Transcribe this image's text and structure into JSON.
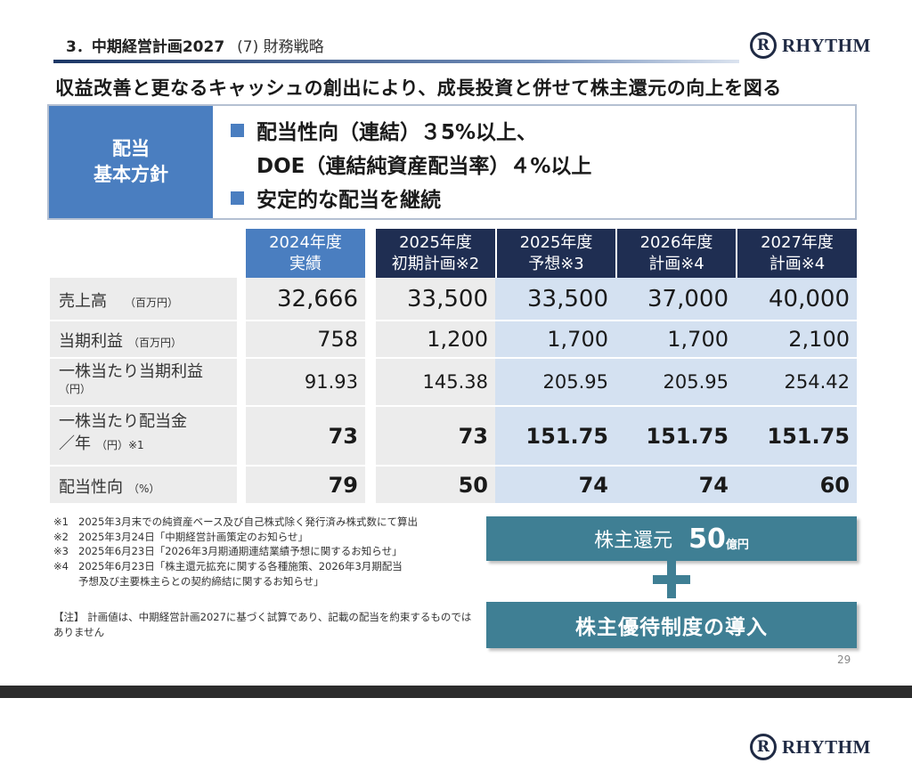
{
  "header": {
    "title": "3．中期経営計画2027",
    "subtitle": "(7) 財務戦略"
  },
  "logo": {
    "mark": "R",
    "word": "RHYTHM"
  },
  "headline": "収益改善と更なるキャッシュの創出により、成長投資と併せて株主還元の向上を図る",
  "policy": {
    "label_line1": "配当",
    "label_line2": "基本方針",
    "line1": "配当性向（連結）３5%以上、",
    "line2": "DOE（連結純資産配当率）４%以上",
    "line3": "安定的な配当を継続"
  },
  "table": {
    "columns": [
      {
        "line1": "2024年度",
        "line2": "実績"
      },
      {
        "line1": "2025年度",
        "line2": "初期計画※2"
      },
      {
        "line1": "2025年度",
        "line2": "予想※3"
      },
      {
        "line1": "2026年度",
        "line2": "計画※4"
      },
      {
        "line1": "2027年度",
        "line2": "計画※4"
      }
    ],
    "rows": [
      {
        "label": "売上高",
        "unit": "（百万円）",
        "values": [
          "32,666",
          "33,500",
          "33,500",
          "37,000",
          "40,000"
        ]
      },
      {
        "label": "当期利益",
        "unit": "（百万円）",
        "values": [
          "758",
          "1,200",
          "1,700",
          "1,700",
          "2,100"
        ]
      },
      {
        "label": "一株当たり当期利益",
        "unit": "（円）",
        "values": [
          "91.93",
          "145.38",
          "205.95",
          "205.95",
          "254.42"
        ]
      },
      {
        "label": "一株当たり配当金",
        "label2": "／年",
        "unit": "（円）※1",
        "values": [
          "73",
          "73",
          "151.75",
          "151.75",
          "151.75"
        ]
      },
      {
        "label": "配当性向",
        "unit": "（%）",
        "values": [
          "79",
          "50",
          "74",
          "74",
          "60"
        ]
      }
    ]
  },
  "notes": [
    {
      "key": "※1",
      "text": "2025年3月末での純資産ベース及び自己株式除く発行済み株式数にて算出"
    },
    {
      "key": "※2",
      "text": "2025年3月24日「中期経営計画策定のお知らせ」"
    },
    {
      "key": "※3",
      "text": "2025年6月23日「2026年3月期通期連結業績予想に関するお知らせ」"
    },
    {
      "key": "※4",
      "text": "2025年6月23日「株主還元拡充に関する各種施策、2026年3月期配当",
      "cont": "予想及び主要株主らとの契約締結に関するお知らせ」"
    }
  ],
  "caution": "【注】 計画値は、中期経営計画2027に基づく試算であり、記載の配当を約束するものではありません",
  "return_box": {
    "label": "株主還元",
    "amount": "50",
    "unit": "億円"
  },
  "yutai_box": {
    "label": "株主優待制度の導入"
  },
  "page_number": "29"
}
